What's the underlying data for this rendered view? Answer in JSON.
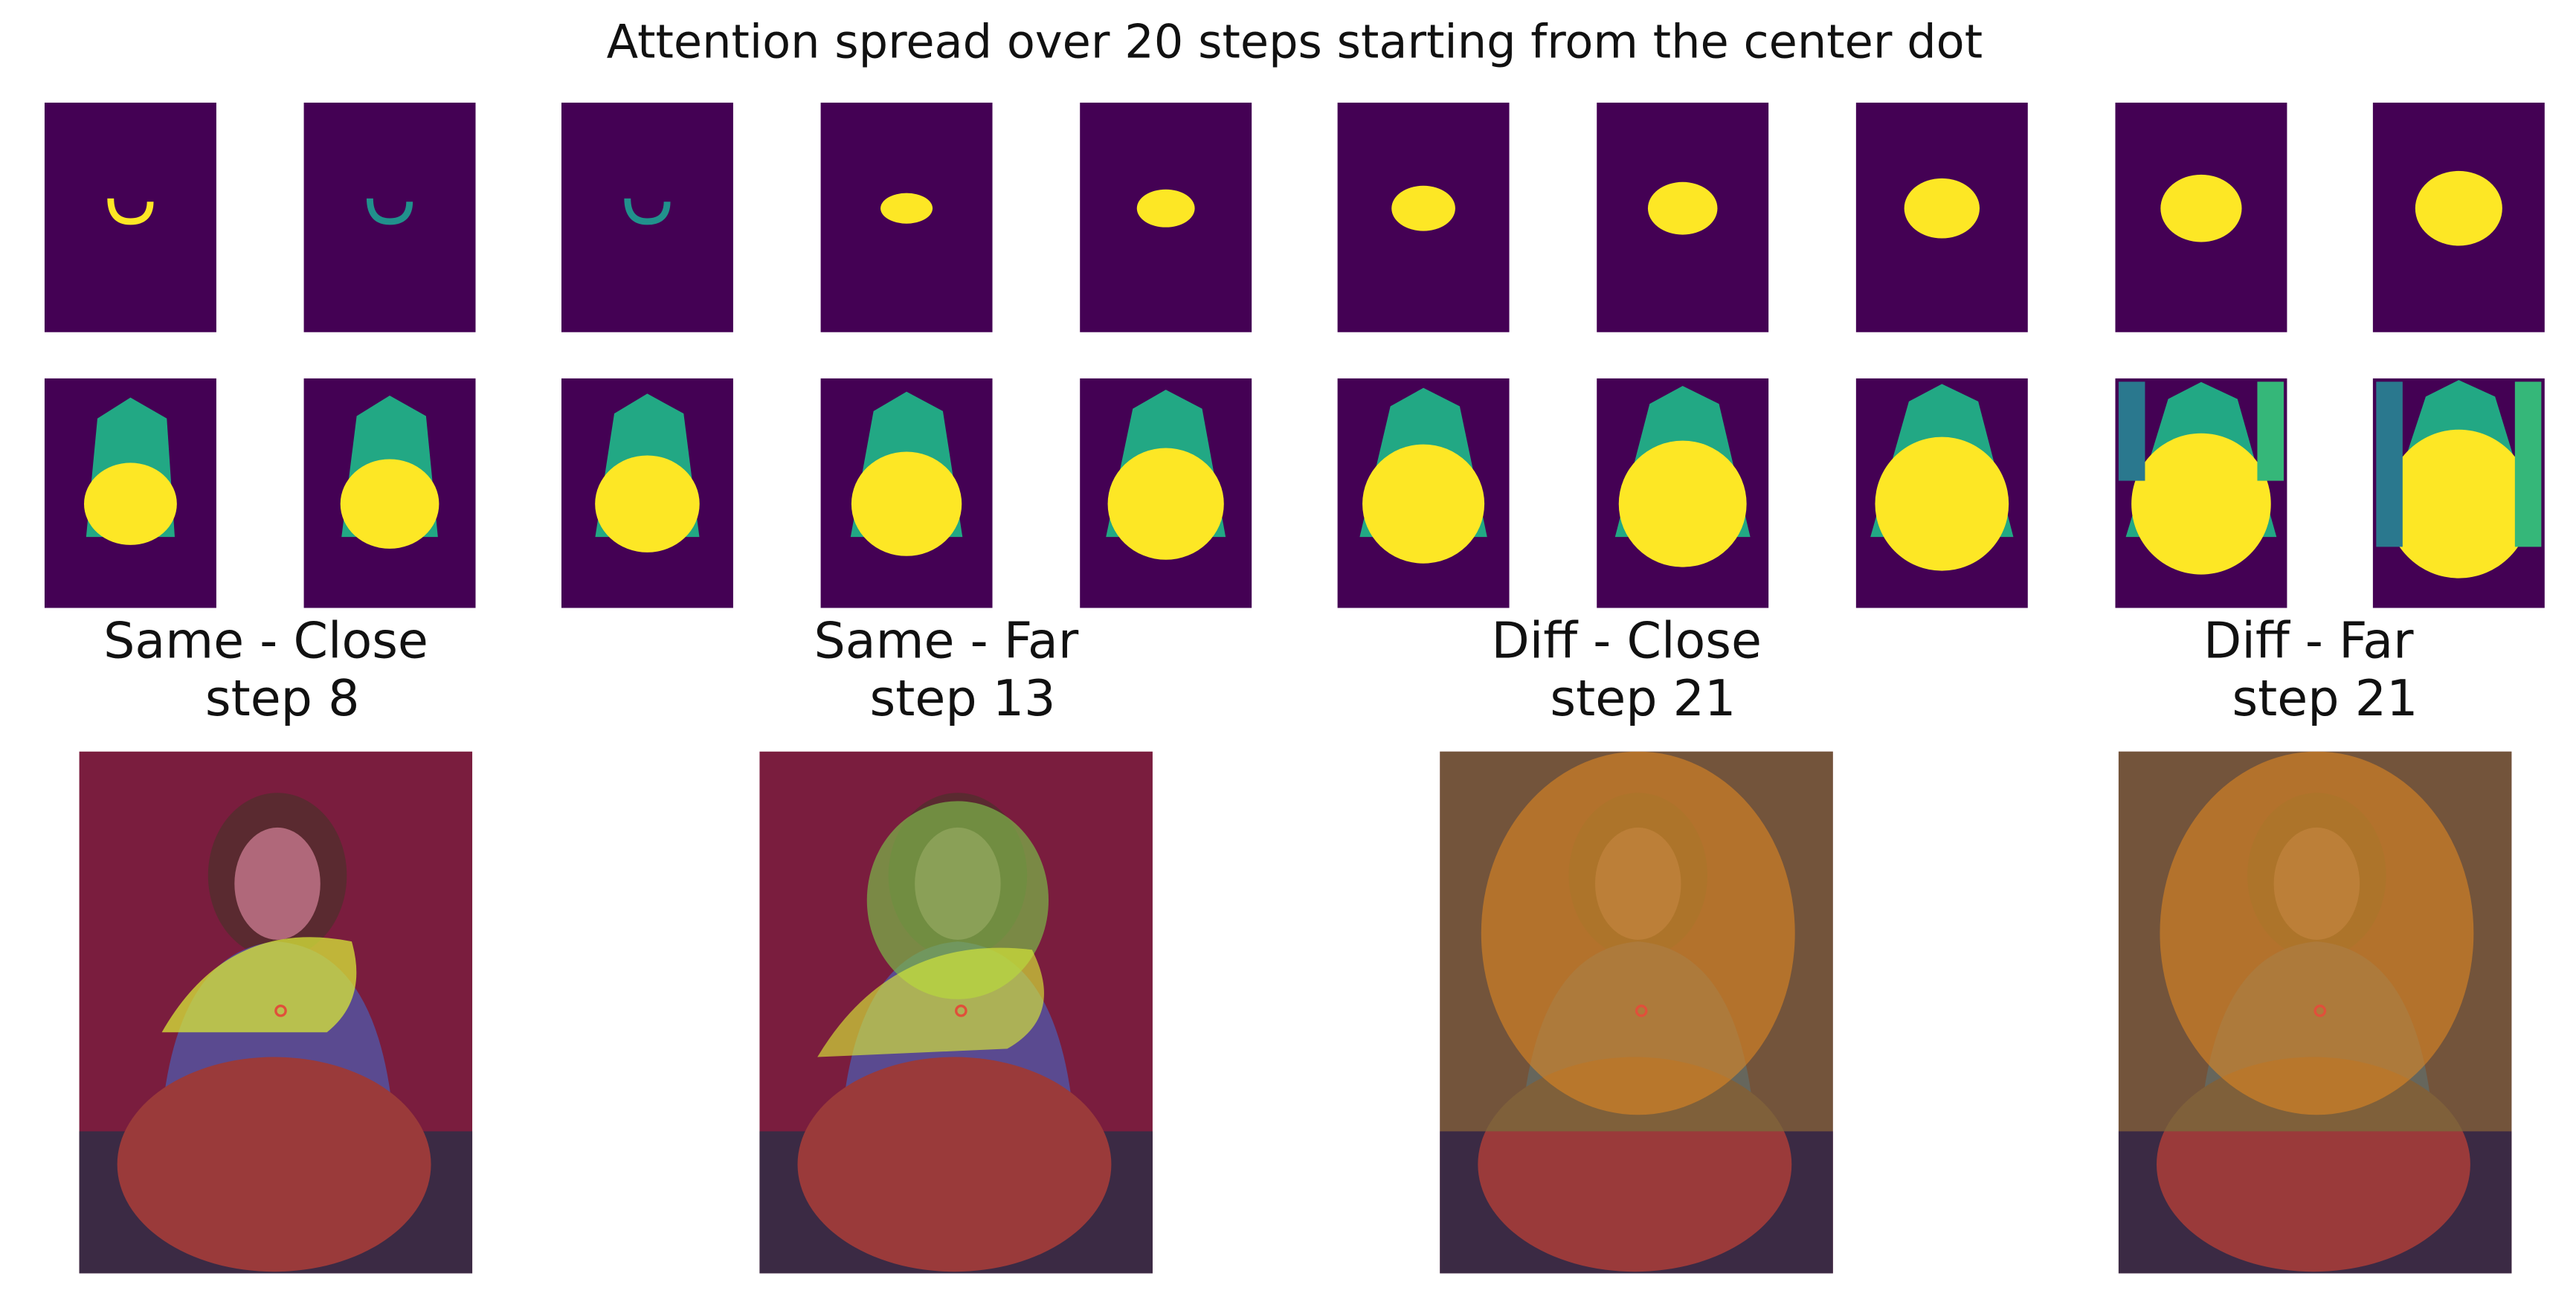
{
  "title": "Attention spread over 20 steps starting from the center dot",
  "panels": [
    {
      "label": "Same - Close",
      "step": "step 8"
    },
    {
      "label": "Same - Far",
      "step": "step 13"
    },
    {
      "label": "Diff - Close",
      "step": "step 21"
    },
    {
      "label": "Diff - Far",
      "step": "step 21"
    }
  ]
}
